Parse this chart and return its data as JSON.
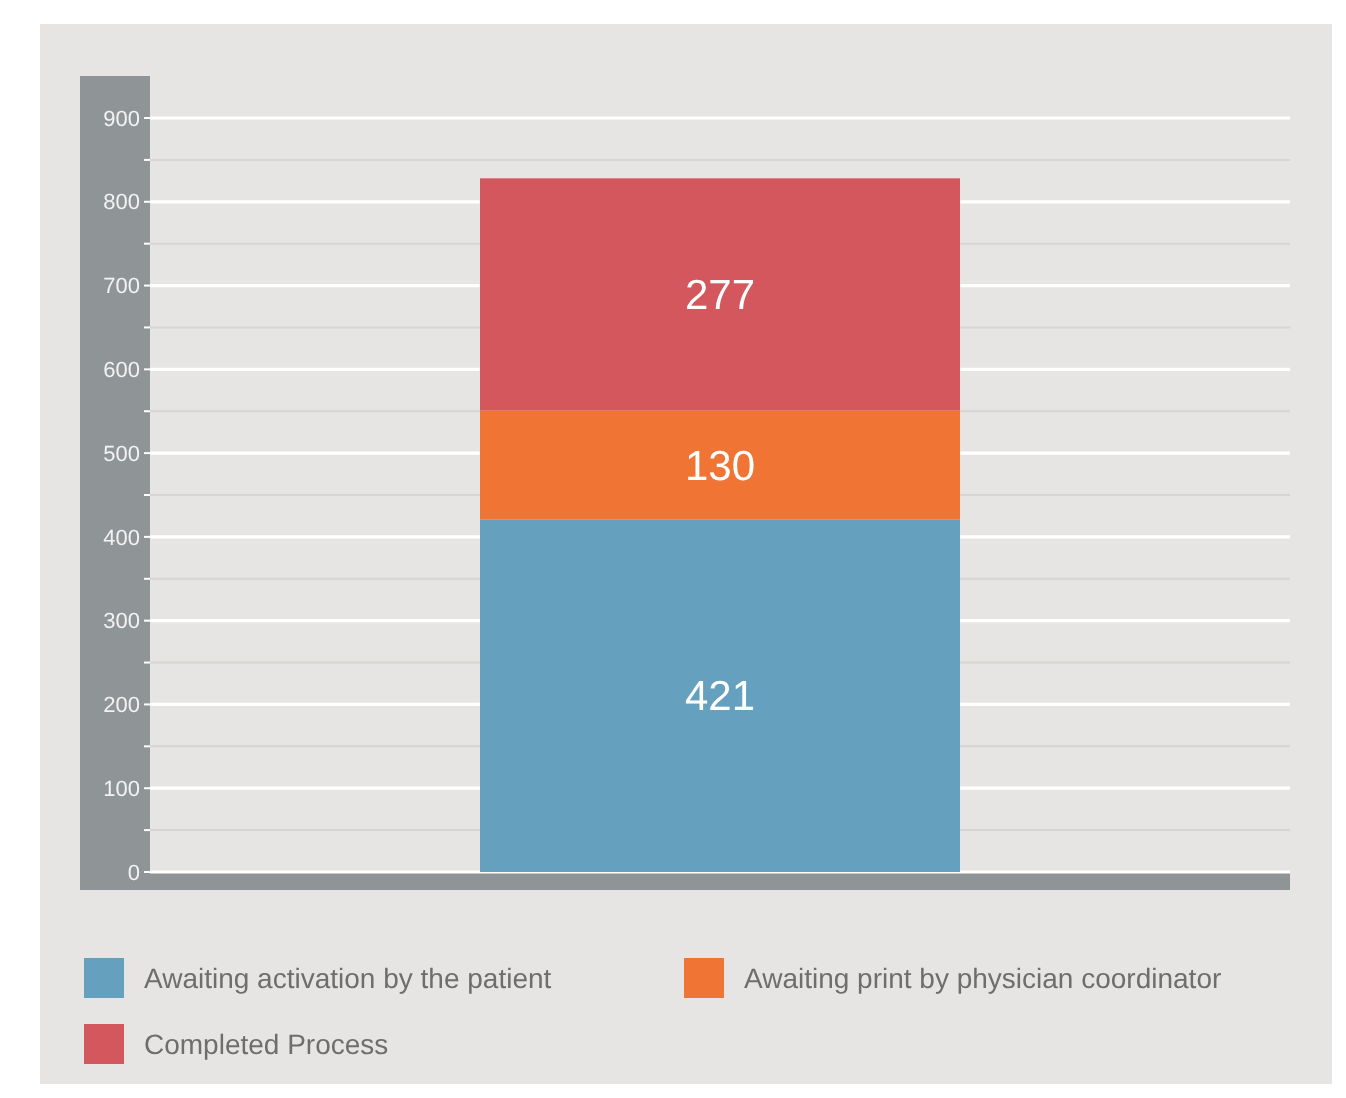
{
  "chart_data": {
    "type": "bar",
    "stacked": true,
    "categories": [
      null
    ],
    "series": [
      {
        "name": "Awaiting activation by the patient",
        "color": "#65a0bf",
        "values": [
          421
        ]
      },
      {
        "name": "Awaiting print by physician coordinator",
        "color": "#f07534",
        "values": [
          130
        ]
      },
      {
        "name": "Completed Process",
        "color": "#d3575c",
        "values": [
          277
        ]
      }
    ],
    "ylim": [
      0,
      900
    ],
    "yticks": [
      0,
      {
        "value": 50,
        "label": null
      },
      100,
      {
        "value": 150,
        "label": null
      },
      200,
      {
        "value": 250,
        "label": null
      },
      300,
      {
        "value": 350,
        "label": null
      },
      400,
      {
        "value": 450,
        "label": null
      },
      500,
      {
        "value": 550,
        "label": null
      },
      600,
      {
        "value": 650,
        "label": null
      },
      700,
      {
        "value": 750,
        "label": null
      },
      800,
      {
        "value": 850,
        "label": null
      },
      900
    ],
    "grid": true,
    "data_labels": true,
    "legend": "bottom"
  }
}
